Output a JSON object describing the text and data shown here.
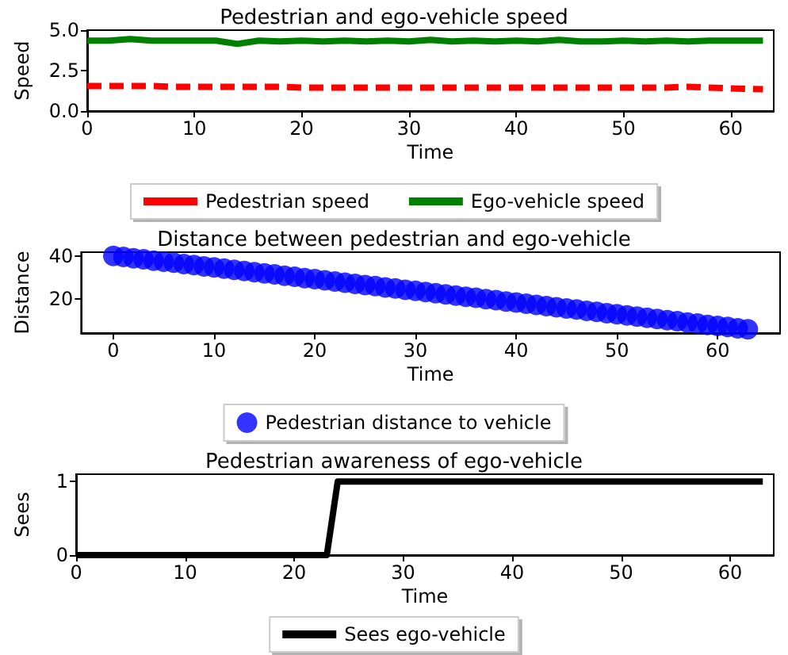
{
  "chart_data": [
    {
      "type": "line",
      "title": "Pedestrian and ego-vehicle speed",
      "xlabel": "Time",
      "ylabel": "Speed",
      "x": [
        0,
        2,
        4,
        6,
        8,
        10,
        12,
        14,
        16,
        18,
        20,
        22,
        24,
        26,
        28,
        30,
        32,
        34,
        36,
        38,
        40,
        42,
        44,
        46,
        48,
        50,
        52,
        54,
        56,
        58,
        60,
        63
      ],
      "series": [
        {
          "name": "Pedestrian speed",
          "color": "#ff0000",
          "line_style": "dashed",
          "values": [
            1.55,
            1.55,
            1.55,
            1.55,
            1.5,
            1.5,
            1.5,
            1.5,
            1.5,
            1.5,
            1.45,
            1.45,
            1.45,
            1.45,
            1.45,
            1.45,
            1.45,
            1.45,
            1.45,
            1.45,
            1.45,
            1.45,
            1.45,
            1.45,
            1.45,
            1.45,
            1.45,
            1.45,
            1.5,
            1.45,
            1.4,
            1.35
          ]
        },
        {
          "name": "Ego-vehicle speed",
          "color": "#008000",
          "line_style": "solid",
          "values": [
            4.35,
            4.35,
            4.45,
            4.35,
            4.35,
            4.35,
            4.35,
            4.15,
            4.35,
            4.3,
            4.35,
            4.3,
            4.35,
            4.3,
            4.35,
            4.3,
            4.4,
            4.3,
            4.35,
            4.3,
            4.35,
            4.3,
            4.4,
            4.3,
            4.3,
            4.35,
            4.3,
            4.35,
            4.3,
            4.35,
            4.35,
            4.35
          ]
        }
      ],
      "xlim": [
        0,
        64
      ],
      "xticks": [
        0,
        10,
        20,
        30,
        40,
        50,
        60
      ],
      "ylim": [
        0,
        5
      ],
      "yticks": [
        {
          "value": 0,
          "label": "0.0"
        },
        {
          "value": 2.5,
          "label": "2.5"
        },
        {
          "value": 5,
          "label": "5.0"
        }
      ],
      "marker": "none",
      "legend": "bottom"
    },
    {
      "type": "scatter",
      "title": "Distance between pedestrian and ego-vehicle",
      "xlabel": "Time",
      "ylabel": "Distance",
      "x": [
        0,
        1,
        2,
        3,
        4,
        5,
        6,
        7,
        8,
        9,
        10,
        11,
        12,
        13,
        14,
        15,
        16,
        17,
        18,
        19,
        20,
        21,
        22,
        23,
        24,
        25,
        26,
        27,
        28,
        29,
        30,
        31,
        32,
        33,
        34,
        35,
        36,
        37,
        38,
        39,
        40,
        41,
        42,
        43,
        44,
        45,
        46,
        47,
        48,
        49,
        50,
        51,
        52,
        53,
        54,
        55,
        56,
        57,
        58,
        59,
        60,
        61,
        62,
        63
      ],
      "series": [
        {
          "name": "Pedestrian distance to vehicle",
          "color": "#0000ff",
          "values": [
            40,
            39.5,
            38.9,
            38.4,
            37.8,
            37.3,
            36.8,
            36.2,
            35.7,
            35.1,
            34.6,
            34.1,
            33.5,
            33,
            32.4,
            31.9,
            31.4,
            30.8,
            30.3,
            29.7,
            29.2,
            28.7,
            28.1,
            27.6,
            27,
            26.5,
            26,
            25.4,
            24.9,
            24.3,
            23.8,
            23.3,
            22.7,
            22.2,
            21.6,
            21.1,
            20.6,
            20,
            19.5,
            18.9,
            18.4,
            17.9,
            17.3,
            16.8,
            16.2,
            15.7,
            15.2,
            14.6,
            14.1,
            13.5,
            13,
            12.5,
            11.9,
            11.4,
            10.8,
            10.3,
            9.8,
            9.2,
            8.7,
            8.1,
            7.6,
            7.1,
            6.5,
            6
          ]
        }
      ],
      "xlim": [
        -3.2,
        66.2
      ],
      "xticks": [
        0,
        10,
        20,
        30,
        40,
        50,
        60
      ],
      "ylim": [
        4.3,
        41.7
      ],
      "yticks": [
        20,
        40
      ],
      "marker": "circle",
      "legend": "bottom"
    },
    {
      "type": "line",
      "title": "Pedestrian awareness of ego-vehicle",
      "xlabel": "Time",
      "ylabel": "Sees",
      "x": [
        0,
        23,
        24,
        63
      ],
      "series": [
        {
          "name": "Sees ego-vehicle",
          "color": "#000000",
          "line_style": "solid",
          "values": [
            0,
            0,
            1,
            1
          ]
        }
      ],
      "xlim": [
        0,
        64
      ],
      "xticks": [
        0,
        10,
        20,
        30,
        40,
        50,
        60
      ],
      "ylim": [
        0,
        1.1
      ],
      "yticks": [
        0,
        1
      ],
      "marker": "none",
      "legend": "bottom"
    }
  ]
}
